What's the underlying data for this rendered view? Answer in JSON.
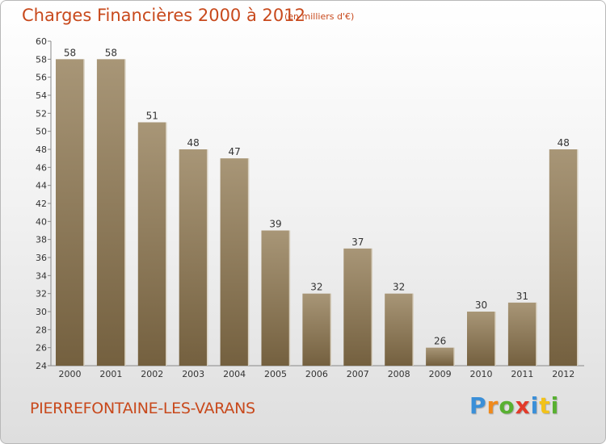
{
  "title": "Charges Financières 2000 à 2012",
  "subtitle": "(en milliers d'€)",
  "commune": "PIERREFONTAINE-LES-VARANS",
  "logo": {
    "letters": [
      "P",
      "r",
      "o",
      "x",
      "i",
      "t",
      "i"
    ],
    "colors": [
      "#3a8fd8",
      "#f08a1c",
      "#58b031",
      "#e23a2a",
      "#3a8fd8",
      "#f2c21a",
      "#58b031"
    ]
  },
  "colors": {
    "bar_top": "#a89677",
    "bar_bottom": "#74603f",
    "accent": "#c8491c"
  },
  "chart_data": {
    "type": "bar",
    "title": "Charges Financières 2000 à 2012",
    "subtitle": "(en milliers d'€)",
    "categories": [
      "2000",
      "2001",
      "2002",
      "2003",
      "2004",
      "2005",
      "2006",
      "2007",
      "2008",
      "2009",
      "2010",
      "2011",
      "2012"
    ],
    "values": [
      58,
      58,
      51,
      48,
      47,
      39,
      32,
      37,
      32,
      26,
      30,
      31,
      48
    ],
    "ylim": [
      24,
      60
    ],
    "yticks": [
      24,
      26,
      28,
      30,
      32,
      34,
      36,
      38,
      40,
      42,
      44,
      46,
      48,
      50,
      52,
      54,
      56,
      58,
      60
    ],
    "grid": false,
    "legend": "none"
  }
}
